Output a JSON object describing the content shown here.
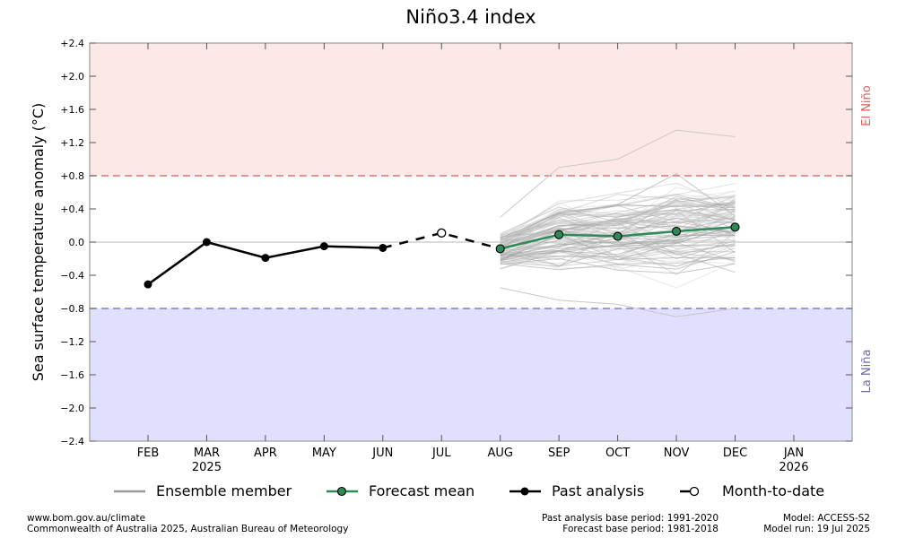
{
  "chart_data": {
    "type": "line",
    "title": "Niño3.4 index",
    "ylabel": "Sea surface temperature anomaly (°C)",
    "xlabel": "",
    "ylim": [
      -2.4,
      2.4
    ],
    "y_ticks": [
      "+2.4",
      "+2.0",
      "+1.6",
      "+1.2",
      "+0.8",
      "+0.4",
      "0.0",
      "−0.4",
      "−0.8",
      "−1.2",
      "−1.6",
      "−2.0",
      "−2.4"
    ],
    "y_tick_values": [
      2.4,
      2.0,
      1.6,
      1.2,
      0.8,
      0.4,
      0.0,
      -0.4,
      -0.8,
      -1.2,
      -1.6,
      -2.0,
      -2.4
    ],
    "categories": [
      "FEB",
      "MAR",
      "APR",
      "MAY",
      "JUN",
      "JUL",
      "AUG",
      "SEP",
      "OCT",
      "NOV",
      "DEC",
      "JAN"
    ],
    "year_labels": [
      {
        "month": "MAR",
        "year": "2025"
      },
      {
        "month": "JAN",
        "year": "2026"
      }
    ],
    "grid": false,
    "thresholds": {
      "el_nino": {
        "value": 0.8,
        "label": "El Niño",
        "color": "#e05a5a",
        "fill": "#fde8e8"
      },
      "la_nina": {
        "value": -0.8,
        "label": "La Niña",
        "color": "#6b6bb5",
        "fill": "#e0e0fe"
      }
    },
    "series": [
      {
        "name": "Past analysis",
        "color": "#000000",
        "x": [
          "FEB",
          "MAR",
          "APR",
          "MAY",
          "JUN"
        ],
        "values": [
          -0.51,
          0.0,
          -0.19,
          -0.05,
          -0.07
        ]
      },
      {
        "name": "Month-to-date",
        "color": "#000000",
        "x": [
          "JUL"
        ],
        "values": [
          0.11
        ]
      },
      {
        "name": "Forecast mean",
        "color": "#2e8b57",
        "x": [
          "AUG",
          "SEP",
          "OCT",
          "NOV",
          "DEC"
        ],
        "values": [
          -0.08,
          0.09,
          0.07,
          0.13,
          0.18
        ]
      },
      {
        "name": "Ensemble member",
        "color": "#9a9a9a",
        "x": [
          "AUG",
          "SEP",
          "OCT",
          "NOV",
          "DEC"
        ],
        "spread_min": [
          -0.55,
          -0.7,
          -0.75,
          -0.9,
          -0.8
        ],
        "spread_max": [
          0.3,
          0.9,
          1.0,
          1.35,
          1.27
        ]
      }
    ],
    "legend_placement": "bottom"
  },
  "legend": {
    "ensemble": "Ensemble member",
    "forecast": "Forecast mean",
    "past": "Past analysis",
    "mtd": "Month-to-date"
  },
  "footer": {
    "url": "www.bom.gov.au/climate",
    "copyright": "Commonwealth of Australia 2025, Australian Bureau of Meteorology",
    "past_base": "Past analysis base period: 1991-2020",
    "forecast_base": "Forecast base period: 1981-2018",
    "model": "Model: ACCESS-S2",
    "model_run": "Model run: 19 Jul 2025"
  }
}
